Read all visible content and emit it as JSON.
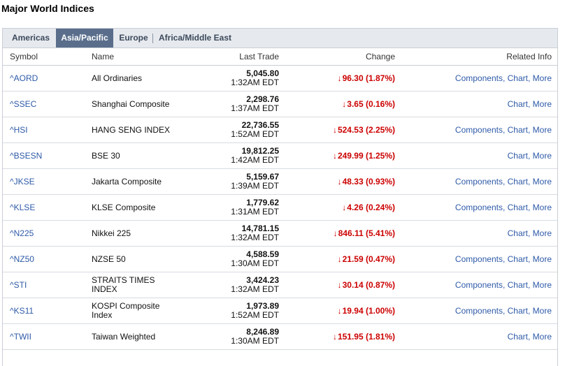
{
  "page_title": "Major World Indices",
  "tabs": [
    "Americas",
    "Asia/Pacific",
    "Europe",
    "Africa/Middle East"
  ],
  "active_tab": "Asia/Pacific",
  "columns": {
    "symbol": "Symbol",
    "name": "Name",
    "last_trade": "Last Trade",
    "change": "Change",
    "related": "Related Info"
  },
  "related_labels": {
    "components": "Components",
    "chart": "Chart",
    "more": "More"
  },
  "colors": {
    "down": "#cc0000",
    "link": "#2e5aa8",
    "active_tab_bg": "#5a6e8c"
  },
  "rows": [
    {
      "symbol": "^AORD",
      "name": "All Ordinaries",
      "price": "5,045.80",
      "time": "1:32AM EDT",
      "change": "96.30 (1.87%)",
      "direction": "down",
      "components": true
    },
    {
      "symbol": "^SSEC",
      "name": "Shanghai Composite",
      "price": "2,298.76",
      "time": "1:37AM EDT",
      "change": "3.65 (0.16%)",
      "direction": "down",
      "components": false
    },
    {
      "symbol": "^HSI",
      "name": "HANG SENG INDEX",
      "price": "22,736.55",
      "time": "1:52AM EDT",
      "change": "524.53 (2.25%)",
      "direction": "down",
      "components": true
    },
    {
      "symbol": "^BSESN",
      "name": "BSE 30",
      "price": "19,812.25",
      "time": "1:42AM EDT",
      "change": "249.99 (1.25%)",
      "direction": "down",
      "components": false
    },
    {
      "symbol": "^JKSE",
      "name": "Jakarta Composite",
      "price": "5,159.67",
      "time": "1:39AM EDT",
      "change": "48.33 (0.93%)",
      "direction": "down",
      "components": true
    },
    {
      "symbol": "^KLSE",
      "name": "KLSE Composite",
      "price": "1,779.62",
      "time": "1:31AM EDT",
      "change": "4.26 (0.24%)",
      "direction": "down",
      "components": true
    },
    {
      "symbol": "^N225",
      "name": "Nikkei 225",
      "price": "14,781.15",
      "time": "1:32AM EDT",
      "change": "846.11 (5.41%)",
      "direction": "down",
      "components": false
    },
    {
      "symbol": "^NZ50",
      "name": "NZSE 50",
      "price": "4,588.59",
      "time": "1:30AM EDT",
      "change": "21.59 (0.47%)",
      "direction": "down",
      "components": true
    },
    {
      "symbol": "^STI",
      "name": "STRAITS TIMES INDEX",
      "price": "3,424.23",
      "time": "1:32AM EDT",
      "change": "30.14 (0.87%)",
      "direction": "down",
      "components": true
    },
    {
      "symbol": "^KS11",
      "name": "KOSPI Composite Index",
      "price": "1,973.89",
      "time": "1:52AM EDT",
      "change": "19.94 (1.00%)",
      "direction": "down",
      "components": true
    },
    {
      "symbol": "^TWII",
      "name": "Taiwan Weighted",
      "price": "8,246.89",
      "time": "1:30AM EDT",
      "change": "151.95 (1.81%)",
      "direction": "down",
      "components": false
    }
  ]
}
